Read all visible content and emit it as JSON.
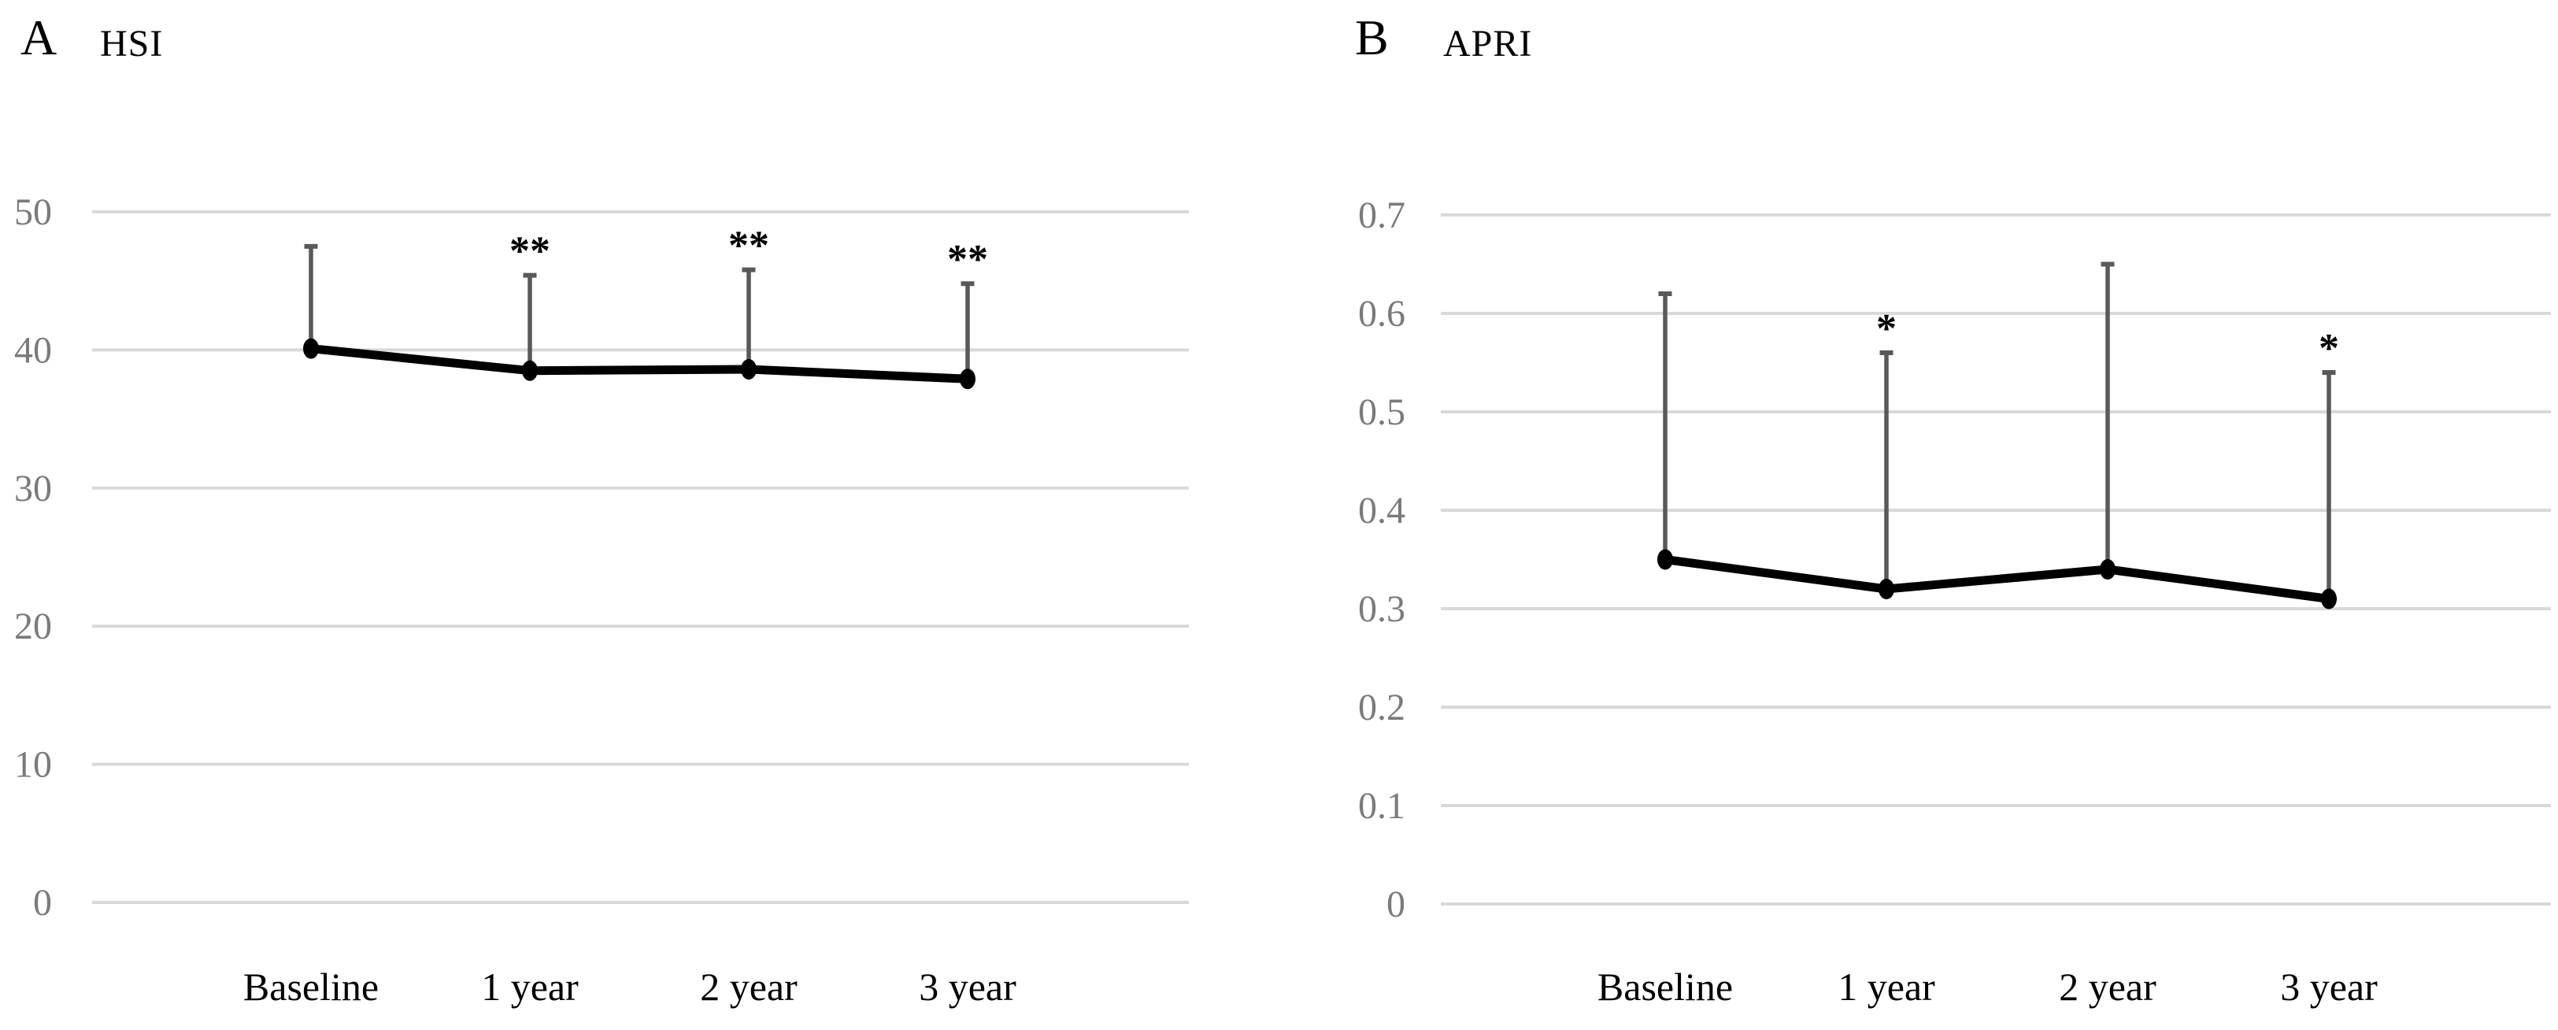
{
  "figure": {
    "background": "#ffffff",
    "description": "Two-panel line chart with upper error bars over follow-up time"
  },
  "chart_data": [
    {
      "panel_label": "A",
      "title": "HSI",
      "type": "line",
      "categories": [
        "Baseline",
        "1 year",
        "2 year",
        "3 year"
      ],
      "series": [
        {
          "name": "HSI",
          "values": [
            40.1,
            38.5,
            38.6,
            37.9
          ],
          "upper_error_tops": [
            47.5,
            45.4,
            45.8,
            44.8
          ]
        }
      ],
      "significance": [
        "",
        "**",
        "**",
        "**"
      ],
      "ylim": [
        0,
        50
      ],
      "yticks": [
        0,
        10,
        20,
        30,
        40,
        50
      ],
      "ytick_labels": [
        "0",
        "10",
        "20",
        "30",
        "40",
        "50"
      ],
      "xlabel": "",
      "ylabel": "",
      "grid": true,
      "legend": false
    },
    {
      "panel_label": "B",
      "title": "APRI",
      "type": "line",
      "categories": [
        "Baseline",
        "1 year",
        "2 year",
        "3 year"
      ],
      "series": [
        {
          "name": "APRI",
          "values": [
            0.35,
            0.32,
            0.34,
            0.31
          ],
          "upper_error_tops": [
            0.62,
            0.56,
            0.65,
            0.54
          ]
        }
      ],
      "significance": [
        "",
        "*",
        "",
        "*"
      ],
      "ylim": [
        0,
        0.7
      ],
      "yticks": [
        0,
        0.1,
        0.2,
        0.3,
        0.4,
        0.5,
        0.6,
        0.7
      ],
      "ytick_labels": [
        "0",
        "0.1",
        "0.2",
        "0.3",
        "0.4",
        "0.5",
        "0.6",
        "0.7"
      ],
      "xlabel": "",
      "ylabel": "",
      "grid": true,
      "legend": false
    }
  ],
  "style": {
    "grid_color": "#d9d9d9",
    "tick_label_color": "#7a7a7a",
    "error_bar_color": "#595959",
    "series_color": "#000000",
    "marker_color": "#000000",
    "significance_color": "#000000",
    "text_color": "#000000"
  }
}
